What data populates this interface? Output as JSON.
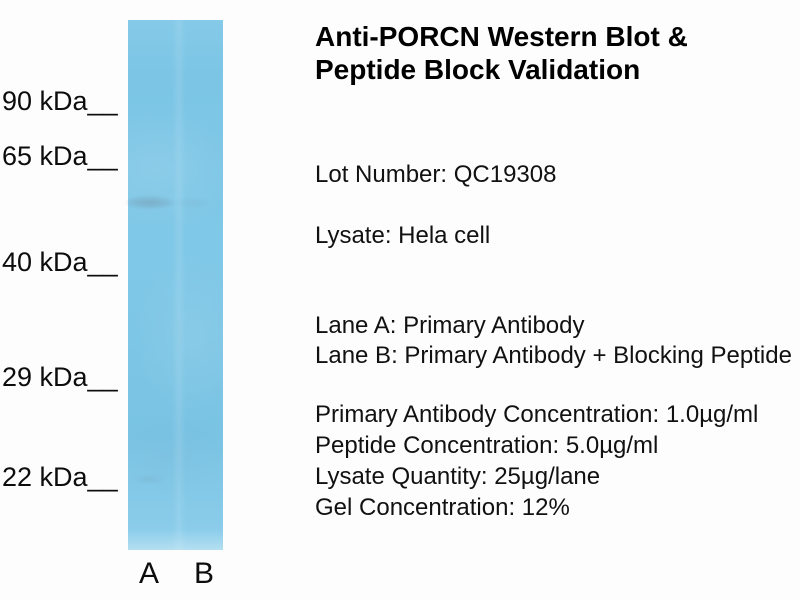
{
  "figure": {
    "background_color": "#fdfdfd",
    "text_color": "#111111",
    "title": {
      "line1": "Anti-PORCN Western Blot &",
      "line2": "Peptide Block Validation"
    },
    "info": {
      "lot": "Lot Number: QC19308",
      "lysate": "Lysate: Hela cell",
      "lane_a_desc": "Lane A: Primary Antibody",
      "lane_b_desc": "Lane B: Primary Antibody + Blocking Peptide",
      "specs": [
        "Primary Antibody Concentration: 1.0µg/ml",
        "Peptide Concentration: 5.0µg/ml",
        "Lysate Quantity: 25µg/lane",
        "Gel Concentration: 12%"
      ]
    }
  },
  "blot": {
    "strip_color": "#7cc6e5",
    "band_color": "rgba(105,122,140,0.34)",
    "markers": [
      {
        "label": "90 kDa__"
      },
      {
        "label": "65 kDa__"
      },
      {
        "label": "40 kDa__"
      },
      {
        "label": "29 kDa__"
      },
      {
        "label": "22 kDa__"
      }
    ],
    "lanes": [
      {
        "label": "A"
      },
      {
        "label": "B"
      }
    ]
  }
}
